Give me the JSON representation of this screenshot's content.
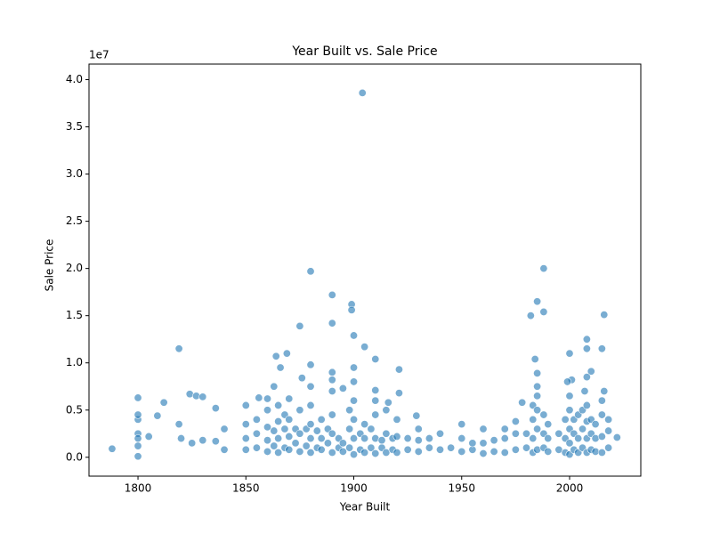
{
  "chart_data": {
    "type": "scatter",
    "title": "Year Built vs. Sale Price",
    "xlabel": "Year Built",
    "ylabel": "Sale Price",
    "y_offset_label": "1e7",
    "color": "#1f77b4",
    "xlim": [
      1777.3,
      2033
    ],
    "ylim": [
      -0.2,
      4.165
    ],
    "xticks": [
      1800,
      1850,
      1900,
      1950,
      2000
    ],
    "yticks": [
      {
        "value": 0,
        "label": "0.0"
      },
      0.5,
      {
        "value": 1,
        "label": "1.0"
      },
      1.5,
      {
        "value": 2,
        "label": "2.0"
      },
      2.5,
      {
        "value": 3,
        "label": "3.0"
      },
      3.5,
      {
        "value": 4,
        "label": "4.0"
      }
    ],
    "x": [
      1904,
      1880,
      1988,
      1890,
      1985,
      1899,
      1899,
      2016,
      1982,
      1988,
      1890,
      1875,
      1900,
      2008,
      1905,
      1819,
      2008,
      2015,
      1869,
      2000,
      1864,
      1910,
      1984,
      1880,
      1866,
      1921,
      1985,
      1890,
      2010,
      2008,
      1876,
      2001,
      1999,
      1863,
      1880,
      1895,
      1985,
      2016,
      1910,
      2007,
      1824,
      1827,
      1830,
      1800,
      1921,
      1856,
      1870,
      1812,
      1978,
      1916,
      1836,
      1809,
      1929,
      1788,
      1800,
      1800,
      1800,
      1805,
      1800,
      1800,
      1800,
      2022,
      1836,
      1840,
      1840,
      1830,
      1820,
      1819,
      1825,
      1850,
      1850,
      1850,
      1850,
      1855,
      1855,
      1855,
      1860,
      1860,
      1860,
      1860,
      1860,
      1863,
      1863,
      1865,
      1865,
      1865,
      1865,
      1868,
      1868,
      1868,
      1870,
      1870,
      1870,
      1873,
      1873,
      1875,
      1875,
      1875,
      1878,
      1878,
      1880,
      1880,
      1880,
      1880,
      1883,
      1883,
      1885,
      1885,
      1885,
      1888,
      1888,
      1890,
      1890,
      1890,
      1890,
      1890,
      1893,
      1893,
      1895,
      1895,
      1898,
      1898,
      1898,
      1900,
      1900,
      1900,
      1900,
      1900,
      1900,
      1903,
      1903,
      1905,
      1905,
      1905,
      1908,
      1908,
      1910,
      1910,
      1910,
      1910,
      1913,
      1913,
      1915,
      1915,
      1915,
      1918,
      1918,
      1920,
      1920,
      1920,
      1925,
      1925,
      1930,
      1930,
      1930,
      1935,
      1935,
      1940,
      1940,
      1945,
      1950,
      1950,
      1950,
      1955,
      1955,
      1960,
      1960,
      1960,
      1965,
      1965,
      1970,
      1970,
      1970,
      1975,
      1975,
      1975,
      1980,
      1980,
      1983,
      1983,
      1983,
      1983,
      1985,
      1985,
      1985,
      1985,
      1988,
      1988,
      1988,
      1990,
      1990,
      1990,
      1995,
      1995,
      1998,
      1998,
      1998,
      2000,
      2000,
      2000,
      2000,
      2000,
      2002,
      2002,
      2002,
      2004,
      2004,
      2004,
      2006,
      2006,
      2006,
      2008,
      2008,
      2008,
      2008,
      2010,
      2010,
      2010,
      2012,
      2012,
      2012,
      2015,
      2015,
      2015,
      2015,
      2018,
      2018,
      2018
    ],
    "y": [
      3.86,
      1.97,
      2.0,
      1.72,
      1.65,
      1.62,
      1.56,
      1.51,
      1.5,
      1.54,
      1.42,
      1.39,
      1.29,
      1.25,
      1.17,
      1.15,
      1.15,
      1.15,
      1.1,
      1.1,
      1.07,
      1.04,
      1.04,
      0.98,
      0.95,
      0.93,
      0.89,
      0.9,
      0.91,
      0.85,
      0.84,
      0.82,
      0.8,
      0.75,
      0.75,
      0.73,
      0.75,
      0.7,
      0.71,
      0.7,
      0.67,
      0.65,
      0.64,
      0.63,
      0.68,
      0.63,
      0.62,
      0.58,
      0.58,
      0.58,
      0.52,
      0.44,
      0.44,
      0.09,
      0.01,
      0.4,
      0.45,
      0.22,
      0.25,
      0.2,
      0.12,
      0.21,
      0.17,
      0.3,
      0.08,
      0.18,
      0.2,
      0.35,
      0.15,
      0.08,
      0.2,
      0.35,
      0.55,
      0.1,
      0.25,
      0.4,
      0.06,
      0.18,
      0.32,
      0.5,
      0.62,
      0.12,
      0.28,
      0.05,
      0.2,
      0.38,
      0.55,
      0.1,
      0.3,
      0.45,
      0.08,
      0.22,
      0.4,
      0.15,
      0.3,
      0.06,
      0.25,
      0.5,
      0.12,
      0.3,
      0.05,
      0.2,
      0.35,
      0.55,
      0.1,
      0.28,
      0.08,
      0.2,
      0.4,
      0.15,
      0.3,
      0.05,
      0.25,
      0.45,
      0.7,
      0.82,
      0.1,
      0.2,
      0.06,
      0.15,
      0.1,
      0.3,
      0.5,
      0.03,
      0.2,
      0.4,
      0.6,
      0.8,
      0.95,
      0.08,
      0.25,
      0.05,
      0.2,
      0.35,
      0.1,
      0.3,
      0.04,
      0.2,
      0.45,
      0.6,
      0.1,
      0.18,
      0.05,
      0.25,
      0.5,
      0.08,
      0.2,
      0.05,
      0.22,
      0.4,
      0.08,
      0.2,
      0.06,
      0.18,
      0.3,
      0.1,
      0.2,
      0.08,
      0.25,
      0.1,
      0.06,
      0.2,
      0.35,
      0.08,
      0.15,
      0.04,
      0.15,
      0.3,
      0.06,
      0.18,
      0.05,
      0.2,
      0.3,
      0.08,
      0.25,
      0.38,
      0.1,
      0.25,
      0.05,
      0.2,
      0.4,
      0.55,
      0.08,
      0.3,
      0.5,
      0.65,
      0.1,
      0.25,
      0.45,
      0.06,
      0.2,
      0.35,
      0.08,
      0.25,
      0.05,
      0.2,
      0.4,
      0.03,
      0.15,
      0.3,
      0.5,
      0.65,
      0.08,
      0.25,
      0.4,
      0.05,
      0.2,
      0.45,
      0.1,
      0.3,
      0.5,
      0.05,
      0.2,
      0.38,
      0.55,
      0.08,
      0.25,
      0.4,
      0.06,
      0.2,
      0.35,
      0.05,
      0.22,
      0.45,
      0.6,
      0.1,
      0.28,
      0.4
    ]
  }
}
